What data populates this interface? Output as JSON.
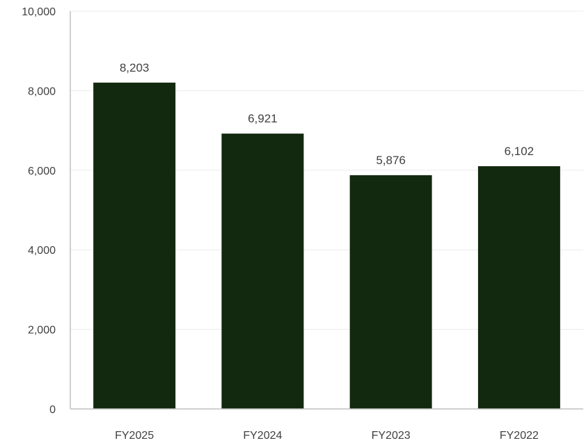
{
  "chart_data": {
    "type": "bar",
    "categories": [
      "FY2025",
      "FY2024",
      "FY2023",
      "FY2022"
    ],
    "values": [
      8203,
      6921,
      5876,
      6102
    ],
    "data_labels": [
      "8,203",
      "6,921",
      "5,876",
      "6,102"
    ],
    "yticks": [
      0,
      2000,
      4000,
      6000,
      8000,
      10000
    ],
    "ytick_labels": [
      "0",
      "2,000",
      "4,000",
      "6,000",
      "8,000",
      "10,000"
    ],
    "ylim": [
      0,
      10000
    ],
    "grid": true,
    "legend": "none",
    "title": "",
    "xlabel": "",
    "ylabel": "",
    "colors": {
      "bar": "#13290f",
      "grid": "#ececec",
      "axis": "#bfbfbf",
      "text": "#404040"
    }
  }
}
